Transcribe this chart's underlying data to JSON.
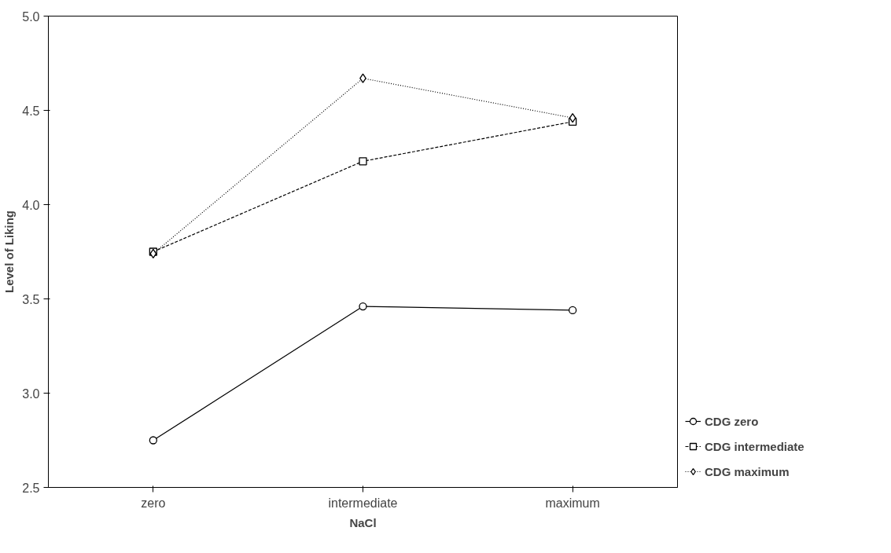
{
  "chart_data": {
    "type": "line",
    "xlabel": "NaCl",
    "ylabel": "Level of Liking",
    "categories": [
      "zero",
      "intermediate",
      "maximum"
    ],
    "ylim": [
      2.5,
      5.0
    ],
    "yticks": [
      2.5,
      {
        "value": 3.0,
        "label": "3.0"
      },
      3.5,
      {
        "value": 4.0,
        "label": "4.0"
      },
      4.5,
      {
        "value": 5.0,
        "label": "5.0"
      }
    ],
    "grid": false,
    "legend": "right",
    "series": [
      {
        "name": "CDG zero",
        "color": "#000000",
        "marker": "circle",
        "line_style": "solid",
        "values": [
          2.75,
          3.46,
          3.44
        ]
      },
      {
        "name": "CDG intermediate",
        "color": "#000000",
        "marker": "square",
        "line_style": "dashed",
        "values": [
          3.75,
          4.23,
          4.44
        ]
      },
      {
        "name": "CDG maximum",
        "color": "#000000",
        "marker": "diamond",
        "line_style": "dotted",
        "values": [
          3.74,
          4.67,
          4.46
        ]
      }
    ]
  }
}
